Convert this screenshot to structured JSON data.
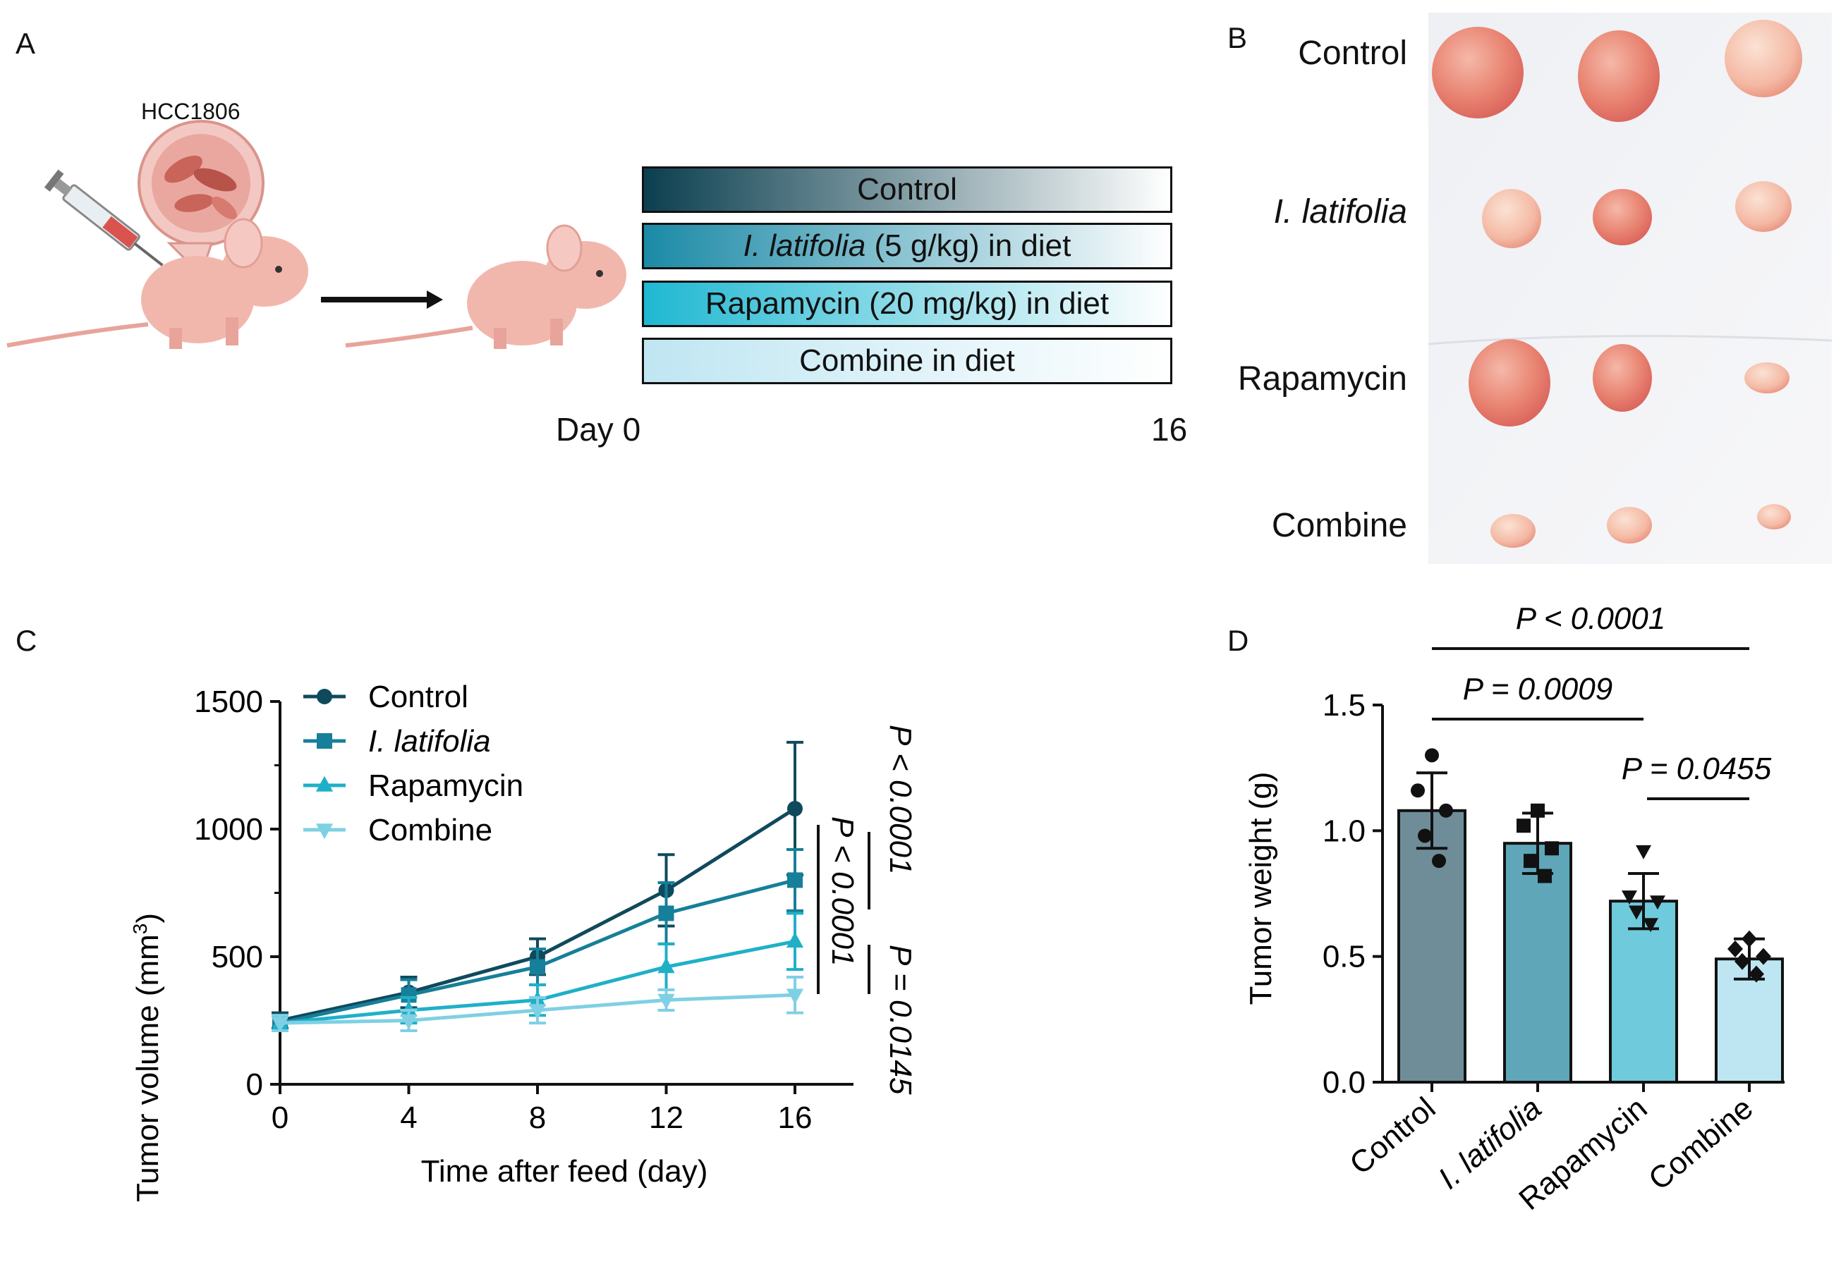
{
  "panels": {
    "a": "A",
    "b": "B",
    "c": "C",
    "d": "D"
  },
  "panel_a": {
    "cell_line": "HCC1806",
    "treatments": [
      {
        "pre": "",
        "em": "",
        "post": "Control"
      },
      {
        "pre": "",
        "em": "I. latifolia",
        "post": " (5 g/kg) in diet"
      },
      {
        "pre": "Rapamycin (20 mg/kg) in diet",
        "em": "",
        "post": ""
      },
      {
        "pre": "Combine in diet",
        "em": "",
        "post": ""
      }
    ],
    "timeline_start": "Day 0",
    "timeline_end": "16",
    "colors": {
      "c1": "#0b3f4f",
      "c2": "#1b8aa6",
      "c3": "#1fb8d2",
      "c4": "#bfe6f2"
    }
  },
  "panel_b": {
    "rows": [
      {
        "label": "Control",
        "italic": false
      },
      {
        "label": "I. latifolia",
        "italic": true
      },
      {
        "label": "Rapamycin",
        "italic": false
      },
      {
        "label": "Combine",
        "italic": false
      }
    ]
  },
  "chart_data": [
    {
      "type": "line",
      "xlabel": "Time after feed (day)",
      "ylabel": "Tumor volume (mm",
      "ylabel_sup": "3",
      "ylabel_end": ")",
      "x": [
        0,
        4,
        8,
        12,
        16
      ],
      "xticks": [
        "0",
        "4",
        "8",
        "12",
        "16"
      ],
      "ylim": [
        0,
        1500
      ],
      "yticks": [
        "0",
        "500",
        "1000",
        "1500"
      ],
      "series": [
        {
          "name": "Control",
          "italic": false,
          "marker": "circle",
          "color": "#0f4a5c",
          "values": [
            250,
            360,
            500,
            760,
            1080
          ],
          "err": [
            30,
            60,
            70,
            140,
            260
          ]
        },
        {
          "name": "I. latifolia",
          "italic": true,
          "marker": "square",
          "color": "#167f99",
          "values": [
            240,
            350,
            460,
            670,
            800
          ],
          "err": [
            30,
            60,
            70,
            120,
            120
          ]
        },
        {
          "name": "Rapamycin",
          "italic": false,
          "marker": "triangle-up",
          "color": "#1fb0c8",
          "values": [
            240,
            290,
            330,
            460,
            560
          ],
          "err": [
            30,
            50,
            60,
            90,
            110
          ]
        },
        {
          "name": "Combine",
          "italic": false,
          "marker": "triangle-down",
          "color": "#7fd0e4",
          "values": [
            240,
            250,
            290,
            330,
            350
          ],
          "err": [
            30,
            40,
            50,
            40,
            70
          ]
        }
      ],
      "annotations": [
        "P < 0.0001",
        "P = 0.0145",
        "P < 0.0001"
      ]
    },
    {
      "type": "bar",
      "ylabel": "Tumor weight (g)",
      "categories": [
        "Control",
        "I. latifolia",
        "Rapamycin",
        "Combine"
      ],
      "category_italic": [
        false,
        true,
        false,
        false
      ],
      "values": [
        1.08,
        0.95,
        0.72,
        0.49
      ],
      "sd": [
        0.15,
        0.12,
        0.11,
        0.08
      ],
      "points": [
        [
          1.3,
          1.16,
          1.08,
          0.98,
          0.88
        ],
        [
          1.08,
          1.02,
          0.93,
          0.88,
          0.82
        ],
        [
          0.92,
          0.74,
          0.72,
          0.68,
          0.63
        ],
        [
          0.57,
          0.53,
          0.5,
          0.48,
          0.43
        ]
      ],
      "point_markers": [
        "circle",
        "square",
        "triangle-down",
        "diamond"
      ],
      "colors": [
        "#6e8d99",
        "#5ea6b8",
        "#6fcbdc",
        "#bde6f2"
      ],
      "ylim": [
        0,
        1.5
      ],
      "yticks": [
        "0.0",
        "0.5",
        "1.0",
        "1.5"
      ],
      "comparisons": [
        "P < 0.0001",
        "P = 0.0009",
        "P = 0.0455"
      ]
    }
  ]
}
